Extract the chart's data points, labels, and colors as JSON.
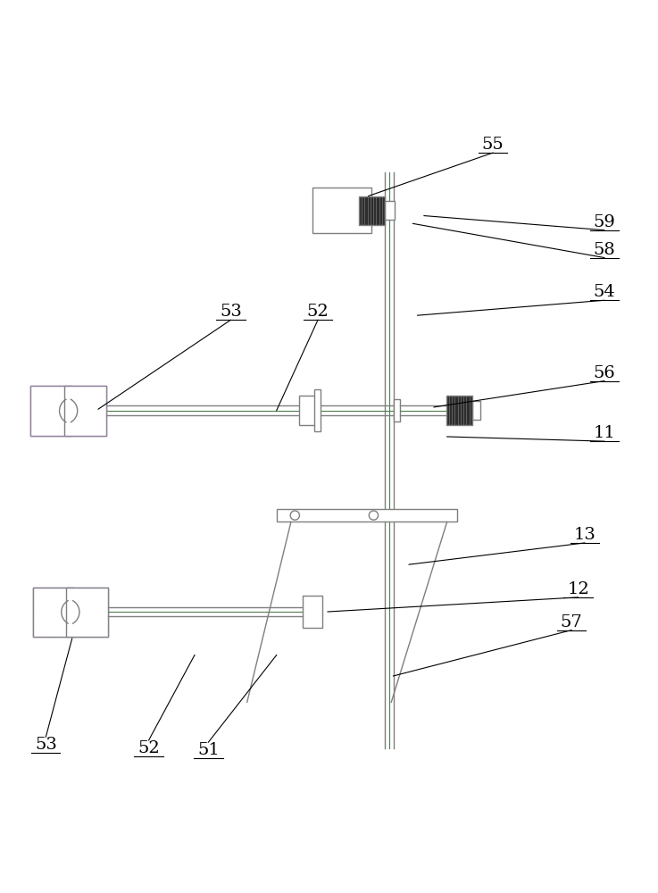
{
  "bg_color": "#ffffff",
  "line_color": "#7f7f7f",
  "green_color": "#4e7f4e",
  "purple_color": "#9b7fa8",
  "figsize": [
    7.37,
    10.0
  ],
  "dpi": 100,
  "vx": 0.6,
  "vw": 0.014,
  "vtop": 0.08,
  "vbot": 0.96
}
